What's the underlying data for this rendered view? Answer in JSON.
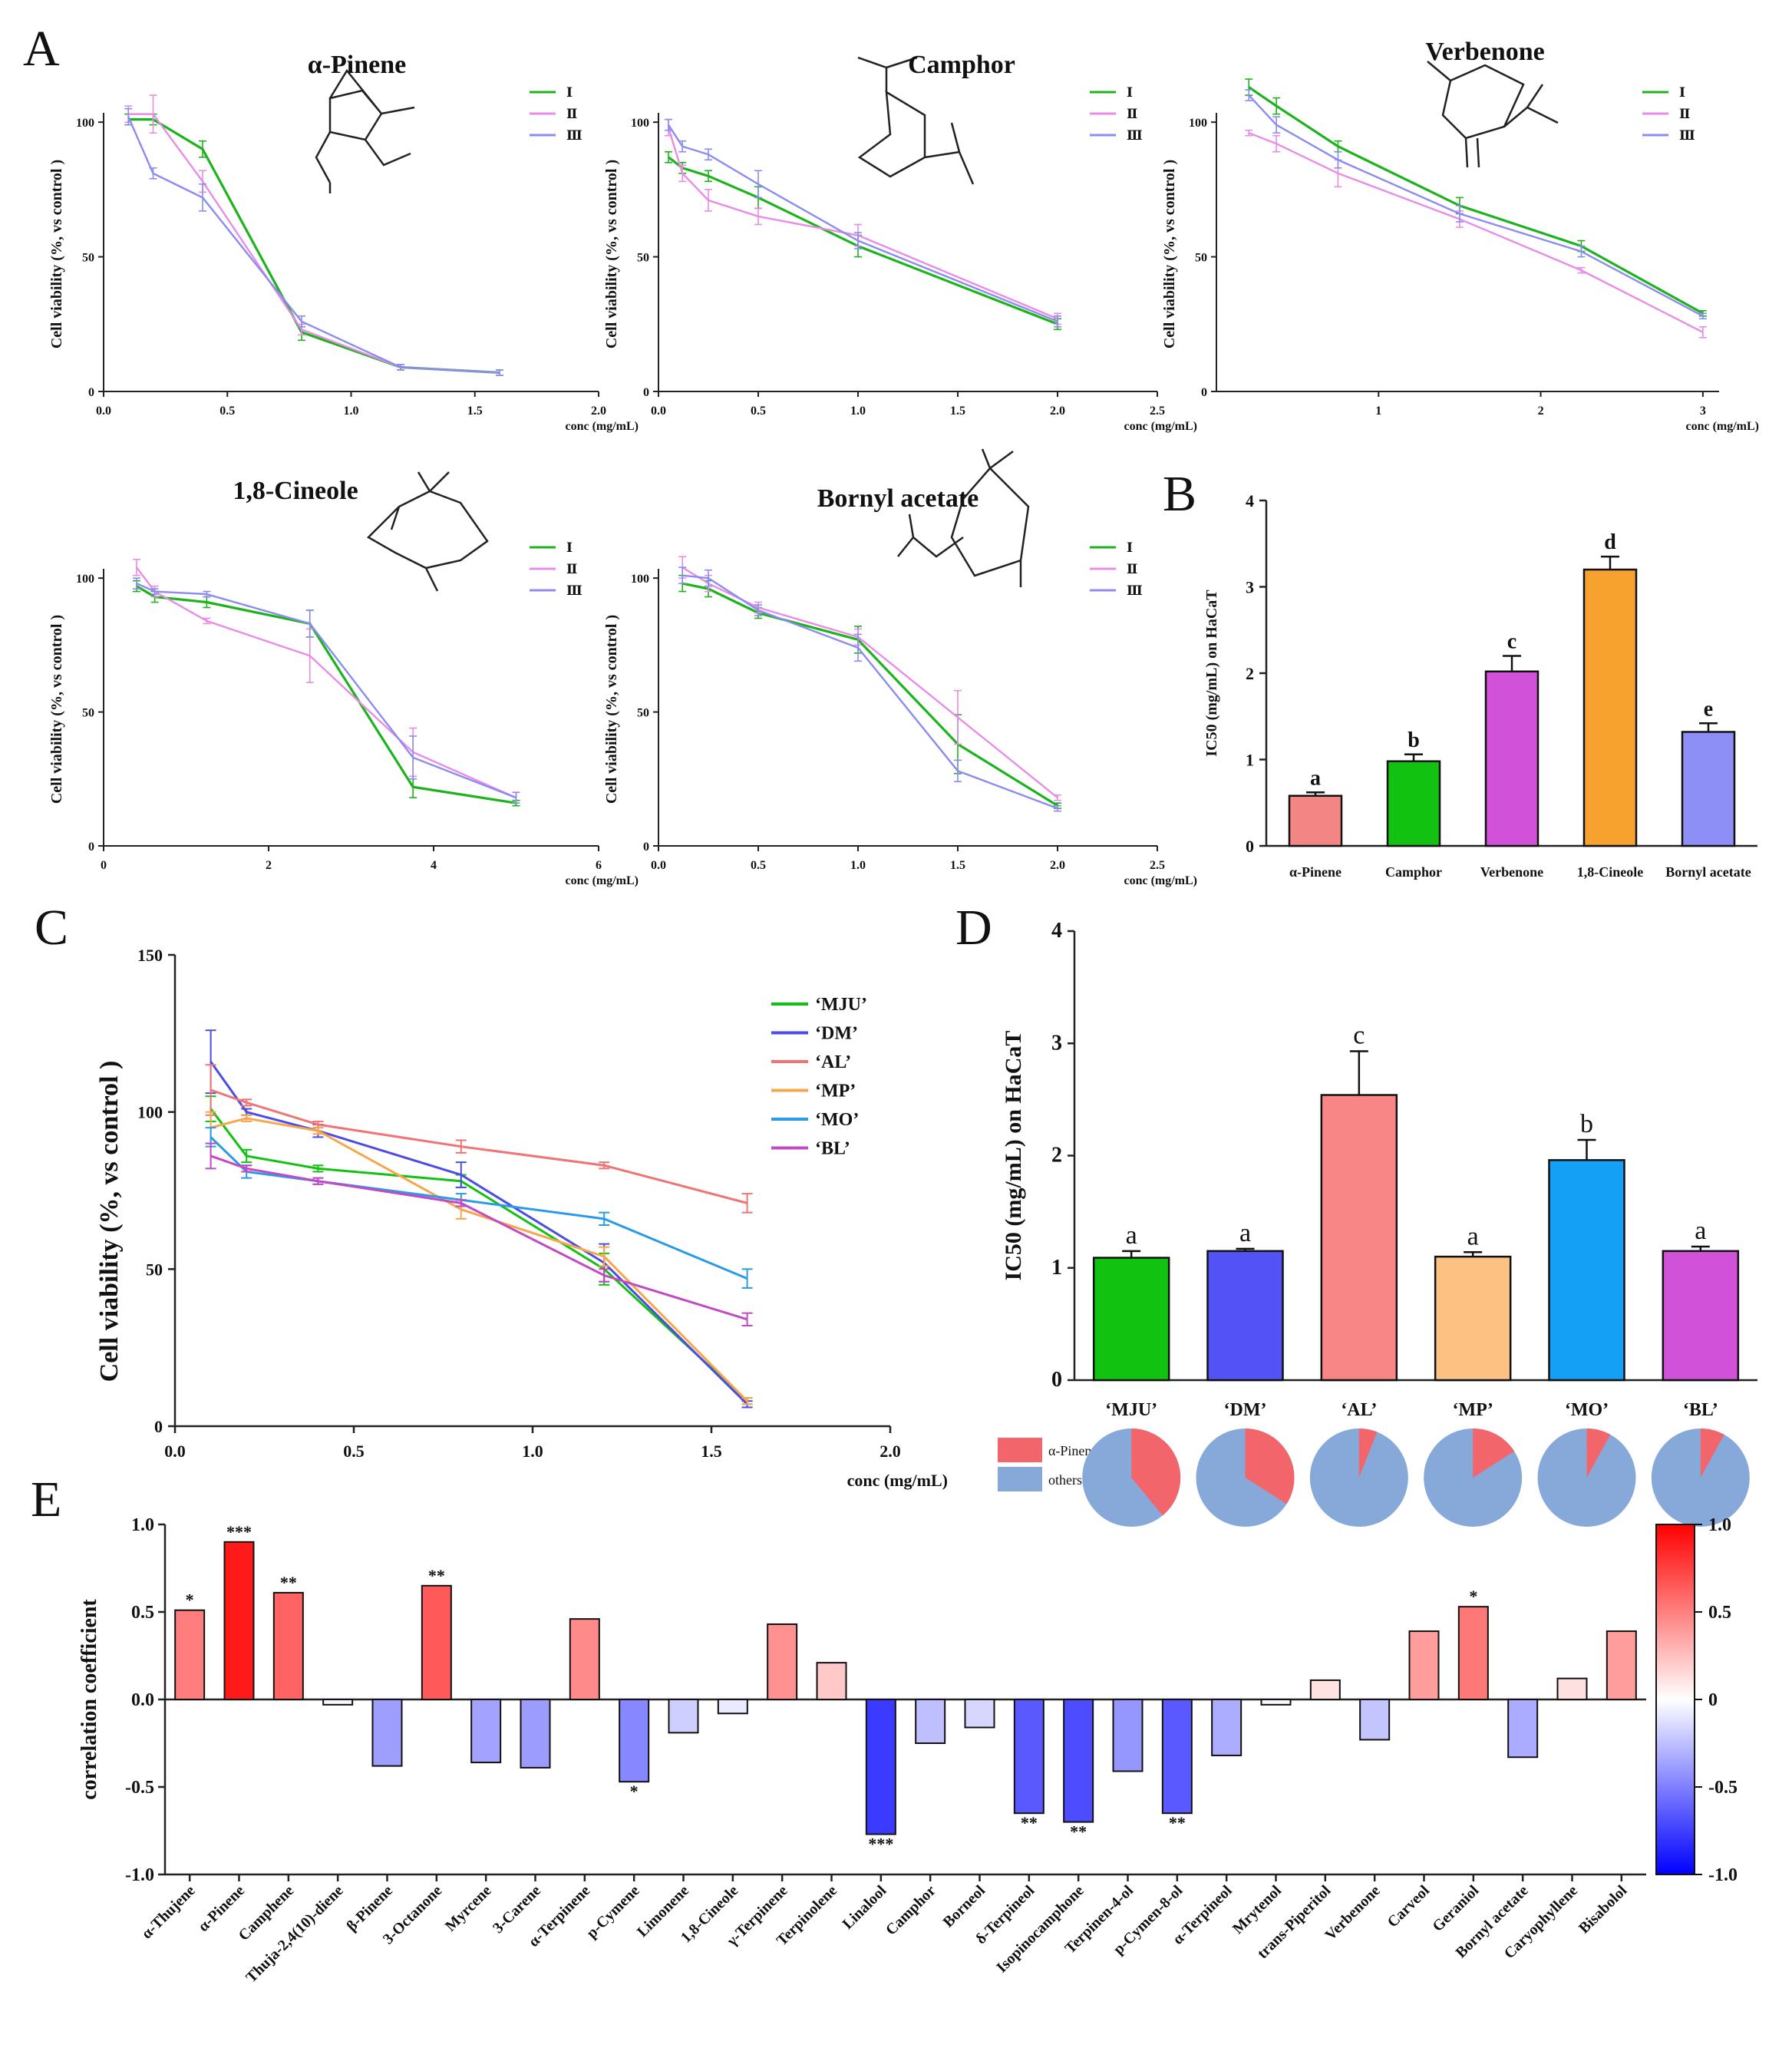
{
  "colors": {
    "green": "#1db31d",
    "pink": "#e88ce8",
    "lavender": "#8c8cf0",
    "c_green": "#11c211",
    "c_blue": "#4d4de6",
    "c_red": "#f07474",
    "c_orange": "#f7a74b",
    "c_sky": "#2a9be6",
    "c_purple": "#c24ac2",
    "alpha_pinene": "#f2666b",
    "others": "#86a9da"
  },
  "panels": {
    "A": "A",
    "B": "B",
    "C": "C",
    "D": "D",
    "E": "E"
  },
  "chart_data": [
    {
      "id": "pinene",
      "type": "line",
      "title": "α-Pinene",
      "xlabel": "conc (mg/mL)",
      "ylabel": "Cell viability (%, vs control )",
      "xlim": [
        0,
        2.0
      ],
      "ylim": [
        0,
        100
      ],
      "xticks": [
        "0.0",
        "0.5",
        "1.0",
        "1.5",
        "2.0"
      ],
      "yticks": [
        "0",
        "50",
        "100"
      ],
      "legend": [
        "Ⅰ",
        "Ⅱ",
        "Ⅲ"
      ],
      "series": [
        {
          "name": "Ⅰ",
          "x": [
            0.1,
            0.2,
            0.4,
            0.8,
            1.2,
            1.6
          ],
          "y": [
            101,
            101,
            90,
            22,
            9,
            7
          ],
          "err": [
            2,
            2,
            3,
            3,
            1,
            1
          ]
        },
        {
          "name": "Ⅱ",
          "x": [
            0.1,
            0.2,
            0.4,
            0.8,
            1.2,
            1.6
          ],
          "y": [
            103,
            103,
            78,
            23,
            9,
            7
          ],
          "err": [
            3,
            7,
            4,
            2,
            1,
            1
          ]
        },
        {
          "name": "Ⅲ",
          "x": [
            0.1,
            0.2,
            0.4,
            0.8,
            1.2,
            1.6
          ],
          "y": [
            102,
            81,
            72,
            26,
            9,
            7
          ],
          "err": [
            3,
            2,
            5,
            2,
            1,
            1
          ]
        }
      ]
    },
    {
      "id": "camphor",
      "type": "line",
      "title": "Camphor",
      "xlabel": "conc (mg/mL)",
      "ylabel": "Cell viability (%, vs control )",
      "xlim": [
        0,
        2.5
      ],
      "ylim": [
        0,
        100
      ],
      "xticks": [
        "0.0",
        "0.5",
        "1.0",
        "1.5",
        "2.0",
        "2.5"
      ],
      "yticks": [
        "0",
        "50",
        "100"
      ],
      "legend": [
        "Ⅰ",
        "Ⅱ",
        "Ⅲ"
      ],
      "series": [
        {
          "name": "Ⅰ",
          "x": [
            0.05,
            0.12,
            0.25,
            0.5,
            1.0,
            2.0
          ],
          "y": [
            87,
            83,
            80,
            72,
            54,
            25
          ],
          "err": [
            2,
            2,
            2,
            4,
            4,
            2
          ]
        },
        {
          "name": "Ⅱ",
          "x": [
            0.05,
            0.12,
            0.25,
            0.5,
            1.0,
            2.0
          ],
          "y": [
            98,
            81,
            71,
            65,
            58,
            27
          ],
          "err": [
            3,
            3,
            4,
            3,
            4,
            2
          ]
        },
        {
          "name": "Ⅲ",
          "x": [
            0.05,
            0.12,
            0.25,
            0.5,
            1.0,
            2.0
          ],
          "y": [
            99,
            91,
            88,
            77,
            56,
            26
          ],
          "err": [
            2,
            2,
            2,
            5,
            3,
            2
          ]
        }
      ]
    },
    {
      "id": "verbenone",
      "type": "line",
      "title": "Verbenone",
      "xlabel": "conc (mg/mL)",
      "ylabel": "Cell viability (%, vs control )",
      "xlim": [
        0,
        3.1
      ],
      "ylim": [
        0,
        100
      ],
      "xticks": [
        "1",
        "2",
        "3"
      ],
      "yticks": [
        "0",
        "50",
        "100"
      ],
      "legend": [
        "Ⅰ",
        "Ⅱ",
        "Ⅲ"
      ],
      "series": [
        {
          "name": "Ⅰ",
          "x": [
            0.2,
            0.37,
            0.75,
            1.5,
            2.25,
            3.0
          ],
          "y": [
            113,
            106,
            91,
            69,
            54,
            29
          ],
          "err": [
            3,
            3,
            2,
            3,
            2,
            1
          ]
        },
        {
          "name": "Ⅱ",
          "x": [
            0.2,
            0.37,
            0.75,
            1.5,
            2.25,
            3.0
          ],
          "y": [
            96,
            92,
            81,
            64,
            45,
            22
          ],
          "err": [
            1,
            3,
            5,
            3,
            1,
            2
          ]
        },
        {
          "name": "Ⅲ",
          "x": [
            0.2,
            0.37,
            0.75,
            1.5,
            2.25,
            3.0
          ],
          "y": [
            110,
            99,
            86,
            66,
            52,
            28
          ],
          "err": [
            2,
            3,
            3,
            3,
            2,
            1
          ]
        }
      ]
    },
    {
      "id": "cineole",
      "type": "line",
      "title": "1,8-Cineole",
      "xlabel": "conc (mg/mL)",
      "ylabel": "Cell viability (%, vs control )",
      "xlim": [
        0,
        6
      ],
      "ylim": [
        0,
        100
      ],
      "xticks": [
        "0",
        "2",
        "4",
        "6"
      ],
      "yticks": [
        "0",
        "50",
        "100"
      ],
      "legend": [
        "Ⅰ",
        "Ⅱ",
        "Ⅲ"
      ],
      "series": [
        {
          "name": "Ⅰ",
          "x": [
            0.4,
            0.62,
            1.25,
            2.5,
            3.75,
            5.0
          ],
          "y": [
            97,
            93,
            91,
            83,
            22,
            16
          ],
          "err": [
            2,
            2,
            2,
            5,
            4,
            1
          ]
        },
        {
          "name": "Ⅱ",
          "x": [
            0.4,
            0.62,
            1.25,
            2.5,
            3.75,
            5.0
          ],
          "y": [
            104,
            95,
            84,
            71,
            35,
            18
          ],
          "err": [
            3,
            2,
            1,
            10,
            9,
            2
          ]
        },
        {
          "name": "Ⅲ",
          "x": [
            0.4,
            0.62,
            1.25,
            2.5,
            3.75,
            5.0
          ],
          "y": [
            98,
            95,
            94,
            83,
            33,
            18
          ],
          "err": [
            2,
            1,
            1,
            5,
            8,
            2
          ]
        }
      ]
    },
    {
      "id": "bornyl",
      "type": "line",
      "title": "Bornyl acetate",
      "xlabel": "conc (mg/mL)",
      "ylabel": "Cell viability (%, vs control )",
      "xlim": [
        0,
        2.5
      ],
      "ylim": [
        0,
        100
      ],
      "xticks": [
        "0.0",
        "0.5",
        "1.0",
        "1.5",
        "2.0",
        "2.5"
      ],
      "yticks": [
        "0",
        "50",
        "100"
      ],
      "legend": [
        "Ⅰ",
        "Ⅱ",
        "Ⅲ"
      ],
      "series": [
        {
          "name": "Ⅰ",
          "x": [
            0.12,
            0.25,
            0.5,
            1.0,
            1.5,
            2.0
          ],
          "y": [
            98,
            96,
            87,
            77,
            38,
            15
          ],
          "err": [
            3,
            3,
            2,
            5,
            11,
            1
          ]
        },
        {
          "name": "Ⅱ",
          "x": [
            0.12,
            0.25,
            0.5,
            1.0,
            1.5,
            2.0
          ],
          "y": [
            104,
            98,
            89,
            78,
            48,
            18
          ],
          "err": [
            4,
            3,
            2,
            3,
            10,
            1
          ]
        },
        {
          "name": "Ⅲ",
          "x": [
            0.12,
            0.25,
            0.5,
            1.0,
            1.5,
            2.0
          ],
          "y": [
            101,
            100,
            88,
            74,
            28,
            14
          ],
          "err": [
            3,
            3,
            2,
            5,
            4,
            1
          ]
        }
      ]
    },
    {
      "id": "B",
      "type": "bar",
      "ylabel": "IC50 (mg/mL) on HaCaT",
      "categories": [
        "α-Pinene",
        "Camphor",
        "Verbenone",
        "1,8-Cineole",
        "Bornyl acetate"
      ],
      "values": [
        0.58,
        0.98,
        2.02,
        3.2,
        1.32
      ],
      "errors": [
        0.04,
        0.08,
        0.18,
        0.15,
        0.1
      ],
      "letters": [
        "a",
        "b",
        "c",
        "d",
        "e"
      ],
      "ylim": [
        0,
        4
      ],
      "yticks": [
        "0",
        "1",
        "2",
        "3",
        "4"
      ]
    },
    {
      "id": "C",
      "type": "line",
      "xlabel": "conc (mg/mL)",
      "ylabel": "Cell viability (%, vs control )",
      "xlim": [
        0,
        2.0
      ],
      "ylim": [
        0,
        150
      ],
      "xticks": [
        "0.0",
        "0.5",
        "1.0",
        "1.5",
        "2.0"
      ],
      "yticks": [
        "0",
        "50",
        "100",
        "150"
      ],
      "series": [
        {
          "name": "‘MJU’",
          "x": [
            0.1,
            0.2,
            0.4,
            0.8,
            1.2,
            1.6
          ],
          "y": [
            101,
            86,
            82,
            78,
            50,
            8
          ],
          "err": [
            4,
            2,
            1,
            2,
            5,
            1
          ]
        },
        {
          "name": "‘DM’",
          "x": [
            0.1,
            0.2,
            0.4,
            0.8,
            1.2,
            1.6
          ],
          "y": [
            116,
            100,
            94,
            80,
            52,
            7
          ],
          "err": [
            10,
            1,
            2,
            4,
            6,
            1
          ]
        },
        {
          "name": "‘AL’",
          "x": [
            0.1,
            0.2,
            0.4,
            0.8,
            1.2,
            1.6
          ],
          "y": [
            107,
            103,
            96,
            89,
            83,
            71
          ],
          "err": [
            8,
            1,
            1,
            2,
            1,
            3
          ]
        },
        {
          "name": "‘MP’",
          "x": [
            0.1,
            0.2,
            0.4,
            0.8,
            1.2,
            1.6
          ],
          "y": [
            95,
            98,
            94,
            69,
            54,
            8
          ],
          "err": [
            5,
            1,
            1,
            3,
            3,
            1
          ]
        },
        {
          "name": "‘MO’",
          "x": [
            0.1,
            0.2,
            0.4,
            0.8,
            1.2,
            1.6
          ],
          "y": [
            92,
            81,
            78,
            72,
            66,
            47
          ],
          "err": [
            3,
            2,
            1,
            2,
            2,
            3
          ]
        },
        {
          "name": "‘BL’",
          "x": [
            0.1,
            0.2,
            0.4,
            0.8,
            1.2,
            1.6
          ],
          "y": [
            86,
            82,
            78,
            71,
            48,
            34
          ],
          "err": [
            4,
            1,
            1,
            1,
            2,
            2
          ]
        }
      ]
    },
    {
      "id": "D",
      "type": "bar",
      "ylabel": "IC50 (mg/mL) on HaCaT",
      "categories": [
        "‘MJU’",
        "‘DM’",
        "‘AL’",
        "‘MP’",
        "‘MO’",
        "‘BL’"
      ],
      "values": [
        1.09,
        1.15,
        2.54,
        1.1,
        1.96,
        1.15
      ],
      "errors": [
        0.06,
        0.02,
        0.39,
        0.04,
        0.18,
        0.04
      ],
      "letters": [
        "a",
        "a",
        "c",
        "a",
        "b",
        "a"
      ],
      "ylim": [
        0,
        4
      ],
      "yticks": [
        "0",
        "1",
        "2",
        "3",
        "4"
      ],
      "pie_legend": [
        "α-Pinene",
        "others"
      ],
      "pie_fraction": [
        0.39,
        0.34,
        0.06,
        0.16,
        0.08,
        0.08
      ]
    },
    {
      "id": "E",
      "type": "bar",
      "ylabel": "correlation coefficient",
      "ylim": [
        -1.0,
        1.0
      ],
      "yticks": [
        "-1.0",
        "-0.5",
        "0.0",
        "0.5",
        "1.0"
      ],
      "colorbar_ticks": [
        "1.0",
        "0.5",
        "0",
        "-0.5",
        "-1.0"
      ],
      "categories": [
        "α-Thujene",
        "α-Pinene",
        "Camphene",
        "Thuja-2,4(10)-diene",
        "β-Pinene",
        "3-Octanone",
        "Myrcene",
        "3-Carene",
        "α-Terpinene",
        "p-Cymene",
        "Limonene",
        "1,8-Cineole",
        "γ-Terpinene",
        "Terpinolene",
        "Linalool",
        "Camphor",
        "Borneol",
        "δ-Terpineol",
        "Isopinocamphone",
        "Terpinen-4-ol",
        "p-Cymen-8-ol",
        "α-Terpineol",
        "Mrytenol",
        "trans-Piperitol",
        "Verbenone",
        "Carveol",
        "Geraniol",
        "Bornyl acetate",
        "Caryophyllene",
        "Bisabolol"
      ],
      "values": [
        0.51,
        0.9,
        0.61,
        -0.03,
        -0.38,
        0.65,
        -0.36,
        -0.39,
        0.46,
        -0.47,
        -0.19,
        -0.08,
        0.43,
        0.21,
        -0.77,
        -0.25,
        -0.16,
        -0.65,
        -0.7,
        -0.41,
        -0.65,
        -0.32,
        -0.03,
        0.11,
        -0.23,
        0.39,
        0.53,
        -0.33,
        0.12,
        0.39
      ],
      "sig": [
        "*",
        "***",
        "**",
        "",
        "",
        "**",
        "",
        "",
        "",
        "*",
        "",
        "",
        "",
        "",
        "***",
        "",
        "",
        "**",
        "**",
        "",
        "**",
        "",
        "",
        "",
        "",
        "",
        "*",
        "",
        "",
        ""
      ]
    }
  ]
}
